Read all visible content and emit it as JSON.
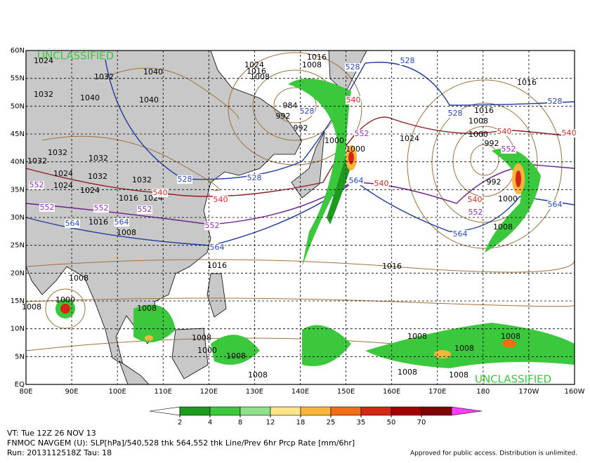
{
  "map": {
    "lat_labels": [
      "60N",
      "55N",
      "50N",
      "45N",
      "40N",
      "35N",
      "30N",
      "25N",
      "20N",
      "15N",
      "10N",
      "5N",
      "EQ"
    ],
    "lon_labels": [
      "80E",
      "90E",
      "100E",
      "110E",
      "120E",
      "130E",
      "140E",
      "150E",
      "160E",
      "170E",
      "180",
      "170W",
      "160W"
    ],
    "classification_top": "UNCLASSIFIED",
    "classification_bottom": "UNCLASSIFIED",
    "slp_contour_labels": [
      1024,
      1032,
      1040,
      1032,
      1040,
      1040,
      1032,
      1032,
      1032,
      1024,
      1032,
      1024,
      1024,
      1032,
      1016,
      1024,
      1016,
      1008,
      1016,
      1024,
      1016,
      1008,
      1008,
      984,
      992,
      992,
      1000,
      1000,
      1024,
      1016,
      1008,
      1000,
      992,
      1000,
      1008,
      1016,
      1016,
      1008,
      1000,
      1008,
      1008,
      1008,
      1000,
      1008,
      1008,
      1008,
      1008,
      1008,
      1008,
      1008,
      1016,
      992
    ],
    "thickness_contour_labels": [
      528,
      528,
      528,
      528,
      528,
      528,
      528,
      540,
      540,
      540,
      540,
      540,
      540,
      540,
      552,
      552,
      552,
      552,
      552,
      552,
      552,
      552,
      564,
      564,
      564,
      564,
      564,
      564
    ]
  },
  "colorbar": {
    "ticks": [
      2,
      4,
      8,
      12,
      18,
      25,
      35,
      50,
      70
    ],
    "colors": [
      "#ffffff",
      "#1c9b1c",
      "#3cc83c",
      "#8ee08e",
      "#ffe48a",
      "#ffb43c",
      "#f06e14",
      "#d22814",
      "#a00000",
      "#820000",
      "#ff3cff"
    ]
  },
  "footer": {
    "valid_time": "VT: Tue 12Z 26 NOV 13",
    "description": "FNMOC NAVGEM (U): SLP[hPa]/540,528 thk 564,552 thk Line/Prev 6hr Prcp Rate [mm/6hr]",
    "run": "Run: 2013112518Z Tau: 18",
    "notice": "Approved for public access. Distribution is unlimited."
  }
}
